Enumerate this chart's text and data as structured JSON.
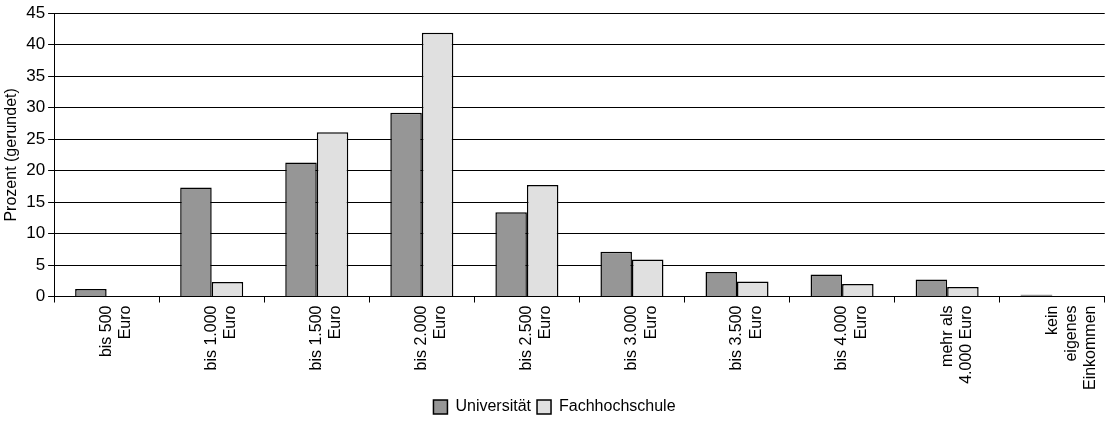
{
  "chart_data": {
    "type": "bar",
    "ylabel": "Prozent (gerundet)",
    "categories": [
      "bis 500\nEuro",
      "bis 1.000\nEuro",
      "bis 1.500\nEuro",
      "bis 2.000\nEuro",
      "bis 2.500\nEuro",
      "bis 3.000\nEuro",
      "bis 3.500\nEuro",
      "bis 4.000\nEuro",
      "mehr als\n4.000 Euro",
      "kein\neigenes\nEinkommen"
    ],
    "series": [
      {
        "name": "Universität",
        "color": "#969696",
        "values": [
          1.2,
          17.3,
          21.3,
          29.2,
          13.4,
          7.1,
          3.9,
          3.5,
          2.7,
          0.3
        ]
      },
      {
        "name": "Fachhochschule",
        "color": "#e0e0e0",
        "values": [
          0,
          2.3,
          26.1,
          41.9,
          17.7,
          5.9,
          2.4,
          2.0,
          1.5,
          0
        ]
      }
    ],
    "ylim": [
      0,
      45
    ],
    "yticks": [
      0,
      5,
      10,
      15,
      20,
      25,
      30,
      35,
      40,
      45
    ],
    "grid": "y",
    "legend": "bottom"
  }
}
